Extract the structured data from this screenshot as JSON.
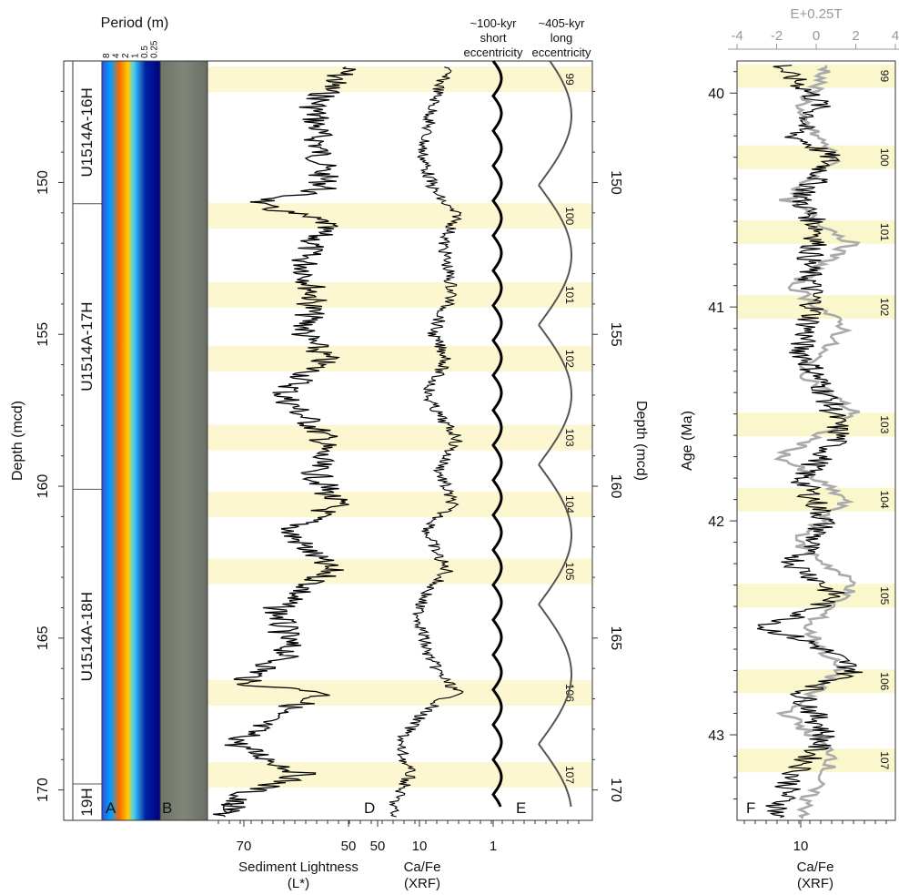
{
  "left_panel": {
    "depth_ticks": [
      150,
      155,
      160,
      165,
      170
    ],
    "depth_ylabel": "Depth (mcd)",
    "depth_range": [
      146.0,
      171.0
    ],
    "period_title": "Period (m)",
    "period_ticks": [
      "8",
      "4",
      "2",
      "1",
      "0.5",
      "0.25"
    ],
    "cores": [
      {
        "label": "U1514A-16H",
        "top": 146.0,
        "bottom": 150.7
      },
      {
        "label": "U1514A-17H",
        "top": 150.7,
        "bottom": 160.1
      },
      {
        "label": "U1514A-18H",
        "top": 160.1,
        "bottom": 169.8
      },
      {
        "label": "19H",
        "top": 169.8,
        "bottom": 171.0
      }
    ],
    "panel_letters": [
      "A",
      "B",
      "C",
      "D",
      "E"
    ],
    "highlight_bands": [
      {
        "label": "99",
        "center": 146.6
      },
      {
        "label": "100",
        "center": 151.1
      },
      {
        "label": "101",
        "center": 153.7
      },
      {
        "label": "102",
        "center": 155.8
      },
      {
        "label": "103",
        "center": 158.4
      },
      {
        "label": "104",
        "center": 160.6
      },
      {
        "label": "105",
        "center": 162.8
      },
      {
        "label": "106",
        "center": 166.8
      },
      {
        "label": "107",
        "center": 169.5
      }
    ],
    "lightness_ticks": [
      "70",
      "50"
    ],
    "lightness_xlabel": "Sediment Lightness",
    "lightness_units": "(L*)",
    "cafe_ticks": [
      "50",
      "10"
    ],
    "cafe_xlabel": "Ca/Fe",
    "cafe_units": "(XRF)",
    "ecc_tick": "1",
    "short_ecc_label": [
      "~100-kyr",
      "short",
      "eccentricity"
    ],
    "long_ecc_label": [
      "~405-kyr",
      "long",
      "eccentricity"
    ]
  },
  "right_panel": {
    "panel_letter": "F",
    "age_ticks": [
      40,
      41,
      42,
      43
    ],
    "age_ylabel": "Age (Ma)",
    "age_range": [
      39.85,
      43.4
    ],
    "top_axis_title": "E+0.25T",
    "top_ticks": [
      -4,
      -2,
      0,
      2,
      4
    ],
    "bottom_tick": "10",
    "bottom_xlabel": "Ca/Fe",
    "bottom_units": "(XRF)",
    "highlight_bands": [
      {
        "label": "99",
        "center": 39.92
      },
      {
        "label": "100",
        "center": 40.3
      },
      {
        "label": "101",
        "center": 40.65
      },
      {
        "label": "102",
        "center": 41.0
      },
      {
        "label": "103",
        "center": 41.55
      },
      {
        "label": "104",
        "center": 41.9
      },
      {
        "label": "105",
        "center": 42.35
      },
      {
        "label": "106",
        "center": 42.75
      },
      {
        "label": "107",
        "center": 43.12
      }
    ]
  },
  "chart_data": [
    {
      "type": "line",
      "panel": "C",
      "xlabel": "Sediment Lightness (L*)",
      "ylabel": "Depth (mcd)",
      "xlim": [
        75,
        45
      ],
      "ylim": [
        146,
        171
      ],
      "series": [
        {
          "x": [
            146.2,
            147.5,
            149.0,
            150.2,
            150.7,
            151.3,
            152.5,
            153.7,
            155.0,
            155.8,
            157.0,
            158.4,
            159.5,
            160.6,
            161.5,
            162.8,
            164.0,
            165.5,
            166.5,
            166.8,
            167.5,
            168.5,
            169.5,
            170.2,
            170.8
          ],
          "y": [
            52,
            58,
            57,
            56,
            70,
            56,
            60,
            58,
            60,
            56,
            64,
            56,
            58,
            54,
            63,
            55,
            65,
            63,
            72,
            55,
            66,
            73,
            60,
            73,
            75
          ]
        }
      ]
    },
    {
      "type": "line",
      "panel": "D",
      "xlabel": "Ca/Fe (XRF)",
      "ylabel": "Depth (mcd)",
      "xlim": [
        60,
        4
      ],
      "ylim": [
        146,
        171
      ],
      "series": [
        {
          "x": [
            146.2,
            147.5,
            149.0,
            150.2,
            151.1,
            152.0,
            153.7,
            155.0,
            155.8,
            157.0,
            158.4,
            159.5,
            160.6,
            161.5,
            162.8,
            164.0,
            165.5,
            166.8,
            167.8,
            168.5,
            169.5,
            170.5
          ],
          "y": [
            8,
            12,
            16,
            12,
            6,
            9,
            7,
            12,
            8,
            14,
            6,
            10,
            7,
            14,
            8,
            18,
            14,
            6,
            20,
            30,
            22,
            35
          ]
        }
      ]
    },
    {
      "type": "line",
      "panel": "E",
      "xlabel": "",
      "ylabel": "Depth (mcd)",
      "ylim": [
        146,
        171
      ],
      "series": [
        {
          "name": "~100-kyr short eccentricity",
          "period_m": 1.15
        },
        {
          "name": "~405-kyr long eccentricity",
          "period_m": 4.6
        }
      ]
    },
    {
      "type": "line",
      "panel": "F",
      "xlabel": "Ca/Fe (XRF)",
      "ylabel": "Age (Ma)",
      "ylim": [
        39.85,
        43.4
      ],
      "x2label": "E+0.25T",
      "x2lim": [
        -4,
        4
      ],
      "series": [
        {
          "x": [
            39.9,
            40.05,
            40.2,
            40.3,
            40.5,
            40.65,
            40.8,
            41.0,
            41.2,
            41.45,
            41.6,
            41.8,
            42.0,
            42.2,
            42.35,
            42.5,
            42.7,
            42.8,
            43.0,
            43.2,
            43.4
          ],
          "y": [
            7,
            12,
            8,
            14,
            9,
            12,
            10,
            11,
            9,
            14,
            16,
            9,
            13,
            8,
            15,
            5,
            20,
            9,
            13,
            8,
            6
          ]
        },
        {
          "x": [
            39.9,
            40.1,
            40.3,
            40.5,
            40.7,
            40.9,
            41.1,
            41.3,
            41.5,
            41.7,
            41.9,
            42.1,
            42.3,
            42.5,
            42.7,
            42.9,
            43.1,
            43.3
          ],
          "y": [
            0.5,
            -1.0,
            1.0,
            -1.5,
            1.8,
            -1.2,
            1.5,
            -0.8,
            2.0,
            -1.8,
            1.5,
            -1.0,
            2.0,
            -0.5,
            1.2,
            -1.5,
            1.0,
            -0.5
          ]
        }
      ]
    }
  ]
}
